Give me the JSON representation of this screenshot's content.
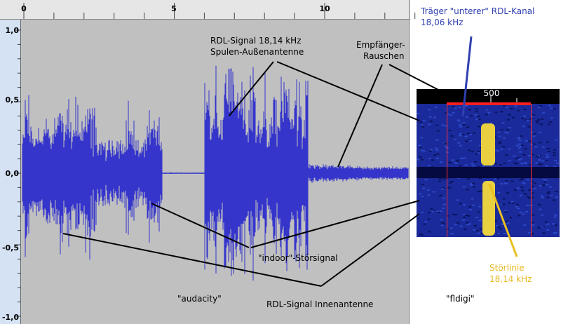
{
  "ruler": {
    "ticks": [
      "0",
      "5",
      "10"
    ]
  },
  "y_axis": {
    "labels": [
      "1,0",
      "0,5",
      "0,0",
      "-0,5",
      "-1,0"
    ]
  },
  "annotations": {
    "rdl_outer": [
      "RDL-Signal 18,14 kHz",
      "Spulen-Außenantenne"
    ],
    "noise": [
      "Empfänger-",
      "Rauschen"
    ],
    "carrier": [
      "Träger \"unterer\" RDL-Kanal",
      "18,06 kHz"
    ],
    "indoor": "\"indoor\"-Störsignal",
    "rdl_inner": "RDL-Signal Innenantenne",
    "stoerlinie": [
      "Störlinie",
      "18,14 kHz"
    ]
  },
  "audacity": {
    "tool_label": "\"audacity\""
  },
  "fldigi": {
    "scale_label": "500",
    "tool_label": "\"fldigi\""
  }
}
